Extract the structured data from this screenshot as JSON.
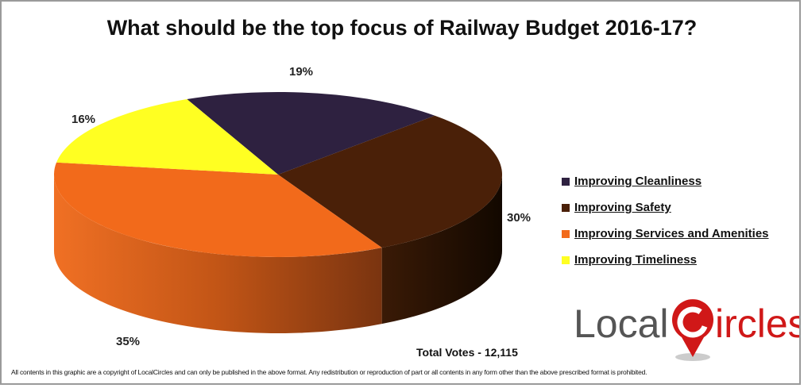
{
  "chart_data": {
    "type": "pie",
    "style": "3d",
    "title": "What should be the top focus of Railway Budget 2016-17?",
    "categories": [
      "Improving Cleanliness",
      "Improving Safety",
      "Improving Services and Amenities",
      "Improving Timeliness"
    ],
    "values": [
      19,
      30,
      35,
      16
    ],
    "labels": [
      "19%",
      "30%",
      "35%",
      "16%"
    ],
    "colors": [
      "#2e2140",
      "#4a2008",
      "#f26a1b",
      "#ffff22"
    ],
    "legend_position": "right"
  },
  "total_votes": "Total Votes - 12,115",
  "logo": {
    "text_left": "Local",
    "text_right": "ircles"
  },
  "footer": "All contents in this graphic are a copyright of LocalCircles and can only be published in the above format. Any redistribution or reproduction of part or all contents in any form other than the above prescribed format is prohibited."
}
